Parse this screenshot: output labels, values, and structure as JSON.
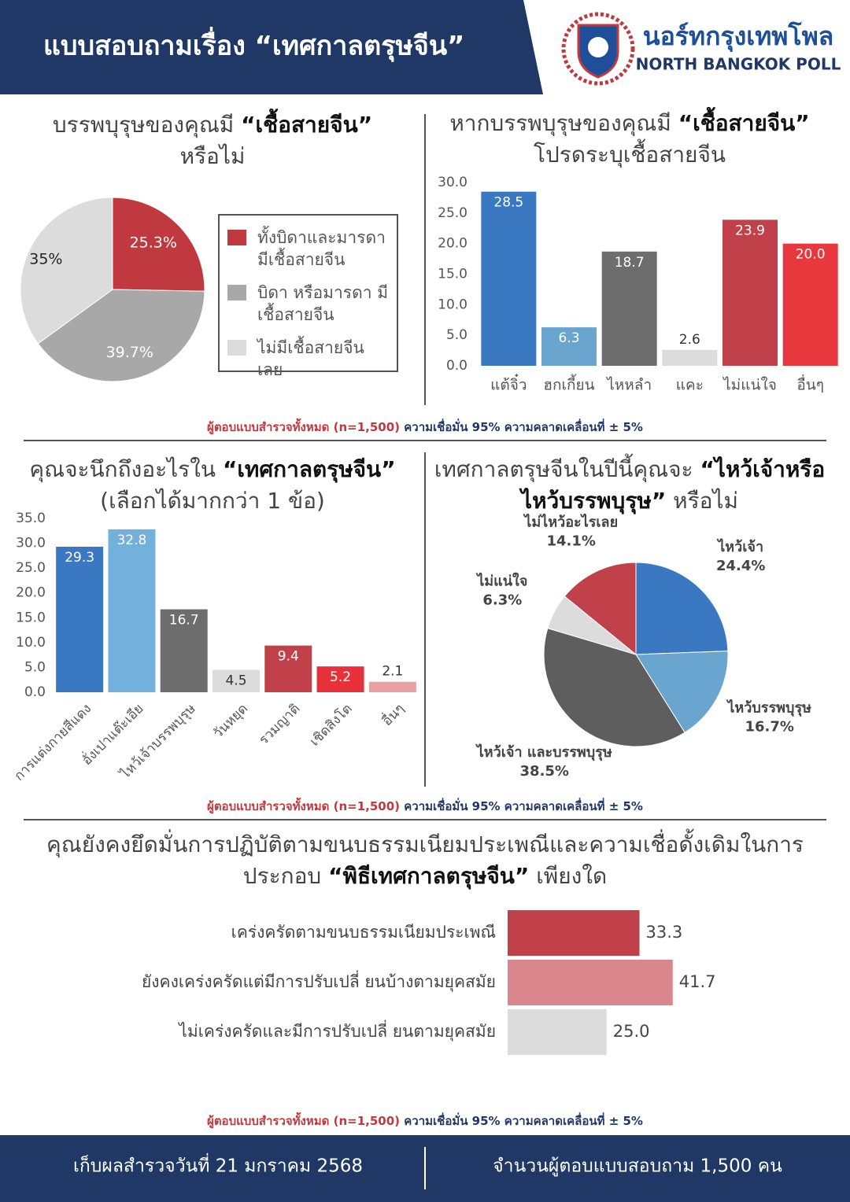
{
  "header": {
    "title": "แบบสอบถามเรื่อง “เทศกาลตรุษจีน”",
    "brand": "นอร์ทกรุงเทพโพล",
    "brand_en": "NORTH BANGKOK POLL"
  },
  "chart_data": [
    {
      "type": "pie",
      "title_lines": [
        [
          {
            "text": "บรรพบุรุษของคุณมี "
          },
          {
            "text": "“เชื้อสายจีน”",
            "bold": true
          }
        ],
        [
          {
            "text": "หรือไม่"
          }
        ]
      ],
      "categories": [
        "ทั้งบิดาและมารดา มีเชื้อสายจีน",
        "บิดา หรือมารดา มีเชื้อสายจีน",
        "ไม่มีเชื้อสายจีนเลย"
      ],
      "values": [
        25.3,
        39.7,
        35
      ],
      "value_labels": [
        "25.3%",
        "39.7%",
        "35%"
      ],
      "colors": [
        "#c0393f",
        "#a8a8a8",
        "#dcdcdc"
      ],
      "legend": "right"
    },
    {
      "type": "bar",
      "title_lines": [
        [
          {
            "text": "หากบรรพบุรุษของคุณมี "
          },
          {
            "text": "“เชื้อสายจีน”",
            "bold": true
          }
        ],
        [
          {
            "text": "โปรดระบุเชื้อสายจีน"
          }
        ]
      ],
      "categories": [
        "แต้จิ๋ว",
        "ฮกเกี้ยน",
        "ไหหลำ",
        "แคะ",
        "ไม่แน่ใจ",
        "อื่นๆ"
      ],
      "values": [
        28.5,
        6.3,
        18.7,
        2.6,
        23.9,
        20.0
      ],
      "value_labels": [
        "28.5",
        "6.3",
        "18.7",
        "2.6",
        "23.9",
        "20.0"
      ],
      "colors": [
        "#3a78c1",
        "#6aa5cf",
        "#6d6d6d",
        "#dcdcdc",
        "#c0414a",
        "#e8383d"
      ],
      "ylim": [
        0,
        30
      ],
      "yticks": [
        {
          "value": 0,
          "label": "0.0"
        },
        {
          "value": 5,
          "label": "5.0"
        },
        {
          "value": 10,
          "label": "10.0"
        },
        {
          "value": 15,
          "label": "15.0"
        },
        {
          "value": 20,
          "label": "20.0"
        },
        {
          "value": 25,
          "label": "25.0"
        },
        {
          "value": 30,
          "label": "30.0"
        }
      ]
    },
    {
      "type": "bar",
      "title_lines": [
        [
          {
            "text": "คุณจะนึกถึงอะไรใน "
          },
          {
            "text": "“เทศกาลตรุษจีน”",
            "bold": true
          }
        ],
        [
          {
            "text": "(เลือกได้มากกว่า 1 ข้อ)"
          }
        ]
      ],
      "categories": [
        "การแต่งกายสีแดง",
        "อั่งเปาแต๊ะเอีย",
        "ไหว้เจ้าบรรพบุรุษ",
        "วันหยุด",
        "รวมญาติ",
        "เชิดสิงโต",
        "อื่นๆ"
      ],
      "values": [
        29.3,
        32.8,
        16.7,
        4.5,
        9.4,
        5.2,
        2.1
      ],
      "value_labels": [
        "29.3",
        "32.8",
        "16.7",
        "4.5",
        "9.4",
        "5.2",
        "2.1"
      ],
      "colors": [
        "#3a78c1",
        "#74b0dc",
        "#6d6d6d",
        "#dcdcdc",
        "#c0414a",
        "#e8303a",
        "#e8a0a0"
      ],
      "ylim": [
        0,
        35
      ],
      "yticks": [
        {
          "value": 0,
          "label": "0.0"
        },
        {
          "value": 5,
          "label": "5.0"
        },
        {
          "value": 10,
          "label": "10.0"
        },
        {
          "value": 15,
          "label": "15.0"
        },
        {
          "value": 20,
          "label": "20.0"
        },
        {
          "value": 25,
          "label": "25.0"
        },
        {
          "value": 30,
          "label": "30.0"
        },
        {
          "value": 35,
          "label": "35.0"
        }
      ],
      "rotate_labels": true
    },
    {
      "type": "pie",
      "title_lines": [
        [
          {
            "text": "เทศกาลตรุษจีนในปีนี้คุณจะ "
          },
          {
            "text": "“ไหว้เจ้าหรือ",
            "bold": true
          }
        ],
        [
          {
            "text": "ไหว้บรรพบุรุษ”",
            "bold": true
          },
          {
            "text": " หรือไม่"
          }
        ]
      ],
      "categories": [
        "ไหว้เจ้า",
        "ไหว้บรรพบุรุษ",
        "ไหว้เจ้า และบรรพบุรุษ",
        "ไม่แน่ใจ",
        "ไม่ไหว้อะไรเลย"
      ],
      "values": [
        24.4,
        16.7,
        38.5,
        6.3,
        14.1
      ],
      "value_labels": [
        "24.4%",
        "16.7%",
        "38.5%",
        "6.3%",
        "14.1%"
      ],
      "colors": [
        "#3a78c1",
        "#6aa5cf",
        "#5e5e5e",
        "#dcdcdc",
        "#c0414a"
      ],
      "labels_outside": true
    },
    {
      "type": "hbar",
      "title_lines": [
        [
          {
            "text": "คุณยังคงยึดมั่นการปฏิบัติตามขนบธรรมเนียมประเพณีและความเชื่อดั้งเดิมในการ"
          }
        ],
        [
          {
            "text": "ประกอบ "
          },
          {
            "text": "“พิธีเทศกาลตรุษจีน”",
            "bold": true
          },
          {
            "text": " เพียงใด"
          }
        ]
      ],
      "categories": [
        "เคร่งครัดตามขนบธรรมเนียมประเพณี",
        "ยังคงเคร่งครัดแต่มีการปรับเปลี่ ยนบ้างตามยุคสมัย",
        "ไม่เคร่งครัดและมีการปรับเปลี่ ยนตามยุคสมัย"
      ],
      "values": [
        33.3,
        41.7,
        25.0
      ],
      "value_labels": [
        "33.3",
        "41.7",
        "25.0"
      ],
      "colors": [
        "#c0414a",
        "#d9878c",
        "#dcdcdc"
      ]
    }
  ],
  "survey_note": {
    "sample": "ผู้ตอบแบบสำรวจทั้งหมด (n=1,500)",
    "confidence": " ความเชื่อมั่น 95% ความคลาดเคลื่อนที่ ± 5%"
  },
  "footer": {
    "date": "เก็บผลสำรวจวันที่ 21 มกราคม 2568",
    "respondents": "จำนวนผู้ตอบแบบสอบถาม 1,500 คน"
  }
}
